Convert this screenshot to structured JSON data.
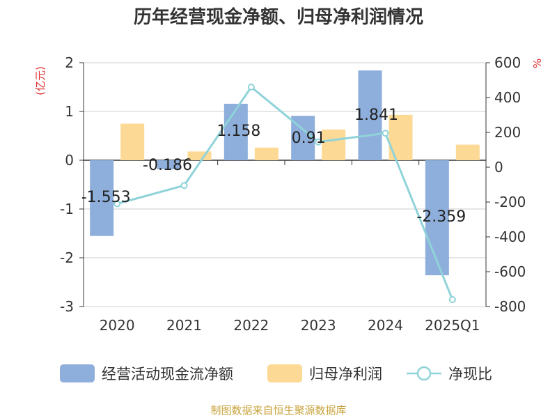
{
  "title": "历年经营现金净额、归母净利润情况",
  "source": "制图数据来自恒生聚源数据库",
  "colors": {
    "cash_flow": "#8eaedb",
    "net_profit": "#fdd996",
    "ratio": "#8fd3d9",
    "axis_unit": "#e03030",
    "source": "#c8a23a"
  },
  "chart_data": {
    "type": "bar",
    "title": "历年经营现金净额、归母净利润情况",
    "categories": [
      "2020",
      "2021",
      "2022",
      "2023",
      "2024",
      "2025Q1"
    ],
    "left_axis": {
      "label": "(亿元)",
      "min": -3,
      "max": 2,
      "ticks": [
        "2",
        "1",
        "0",
        "-1",
        "-2",
        "-3"
      ]
    },
    "right_axis": {
      "label": "%",
      "min": -800,
      "max": 600,
      "ticks": [
        "600",
        "400",
        "200",
        "0",
        "-200",
        "-400",
        "-600",
        "-800"
      ]
    },
    "series": [
      {
        "name": "经营活动现金流净额",
        "type": "bar",
        "axis": "left",
        "values": [
          -1.553,
          -0.186,
          1.158,
          0.91,
          1.841,
          -2.359
        ],
        "labels": [
          "-1.553",
          "-0.186",
          "1.158",
          "0.91",
          "1.841",
          "-2.359"
        ]
      },
      {
        "name": "归母净利润",
        "type": "bar",
        "axis": "left",
        "values": [
          0.75,
          0.18,
          0.26,
          0.63,
          0.93,
          0.32
        ]
      },
      {
        "name": "净现比",
        "type": "line",
        "axis": "right",
        "values": [
          -210,
          -105,
          460,
          145,
          195,
          -760
        ]
      }
    ],
    "legend": [
      "经营活动现金流净额",
      "归母净利润",
      "净现比"
    ]
  }
}
